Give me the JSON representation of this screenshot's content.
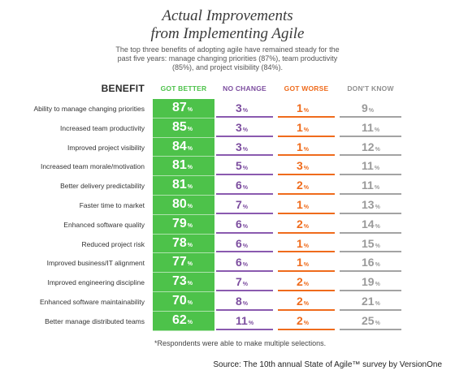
{
  "title_line1": "Actual Improvements",
  "title_line2": "from Implementing Agile",
  "subtitle_lines": [
    "The top three benefits of adopting agile have remained steady for the",
    "past five years: manage changing priorities (87%), team productivity",
    "(85%), and project visibility (84%)."
  ],
  "header": {
    "benefit": "BENEFIT",
    "got_better": "GOT BETTER",
    "no_change": "NO CHANGE",
    "got_worse": "GOT WORSE",
    "dont_know": "DON'T KNOW"
  },
  "percent_symbol": "%",
  "footnote": "*Respondents were able to make multiple selections.",
  "source": "Source: The 10th annual State of Agile™ survey by VersionOne",
  "colors": {
    "got_better": "#4dc24a",
    "no_change": "#8a5aaf",
    "got_worse": "#ef6b1c",
    "dont_know": "#a3a3a3"
  },
  "chart_data": {
    "type": "table",
    "title": "Actual Improvements from Implementing Agile",
    "columns": [
      "BENEFIT",
      "GOT BETTER",
      "NO CHANGE",
      "GOT WORSE",
      "DON'T KNOW"
    ],
    "categories": [
      "Ability to manage changing priorities",
      "Increased team productivity",
      "Improved project visibility",
      "Increased team morale/motivation",
      "Better delivery predictability",
      "Faster time to market",
      "Enhanced software quality",
      "Reduced project risk",
      "Improved business/IT alignment",
      "Improved engineering discipline",
      "Enhanced software maintainability",
      "Better manage distributed teams"
    ],
    "series": [
      {
        "name": "GOT BETTER",
        "values": [
          87,
          85,
          84,
          81,
          81,
          80,
          79,
          78,
          77,
          73,
          70,
          62
        ]
      },
      {
        "name": "NO CHANGE",
        "values": [
          3,
          3,
          3,
          5,
          6,
          7,
          6,
          6,
          6,
          7,
          8,
          11
        ]
      },
      {
        "name": "GOT WORSE",
        "values": [
          1,
          1,
          1,
          3,
          2,
          1,
          2,
          1,
          1,
          2,
          2,
          2
        ]
      },
      {
        "name": "DON'T KNOW",
        "values": [
          9,
          11,
          12,
          11,
          11,
          13,
          14,
          15,
          16,
          19,
          21,
          25
        ]
      }
    ]
  }
}
